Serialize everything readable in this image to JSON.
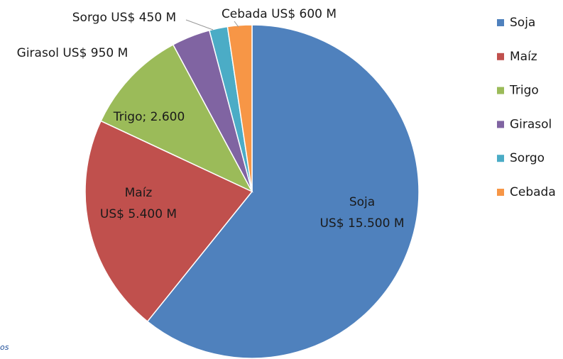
{
  "chart_data": {
    "type": "pie",
    "categories": [
      "Soja",
      "Maíz",
      "Trigo",
      "Girasol",
      "Sorgo",
      "Cebada"
    ],
    "values": [
      15500,
      5400,
      2600,
      950,
      450,
      600
    ],
    "value_labels": [
      [
        "Soja",
        "US$ 15.500 M"
      ],
      [
        "Maíz",
        "US$  5.400 M"
      ],
      [
        "Trigo;  2.600"
      ],
      [
        "Girasol US$ 950 M"
      ],
      [
        "Sorgo US$ 450 M"
      ],
      [
        "Cebada US$ 600 M"
      ]
    ],
    "colors": [
      "#4f81bd",
      "#c0504d",
      "#9bbb59",
      "#8064a2",
      "#4bacc6",
      "#f79646"
    ],
    "legend": "right",
    "footnote": "os"
  }
}
